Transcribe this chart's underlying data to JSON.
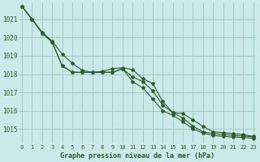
{
  "title": "Graphe pression niveau de la mer (hPa)",
  "background_color": "#cde8e8",
  "grid_color": "#a0ccc0",
  "line_color": "#2d5a2d",
  "x_ticks": [
    0,
    1,
    2,
    3,
    4,
    5,
    6,
    7,
    8,
    9,
    10,
    11,
    12,
    13,
    14,
    15,
    16,
    17,
    18,
    19,
    20,
    21,
    22,
    23
  ],
  "ylim": [
    1014.2,
    1021.9
  ],
  "yticks": [
    1015,
    1016,
    1017,
    1018,
    1019,
    1020,
    1021
  ],
  "line1": [
    1021.7,
    1021.0,
    1020.3,
    1019.8,
    1019.1,
    1018.6,
    1018.2,
    1018.1,
    1018.15,
    1018.3,
    1018.35,
    1018.25,
    1017.75,
    1017.5,
    1016.5,
    1015.9,
    1015.85,
    1015.5,
    1015.15,
    1014.85,
    1014.8,
    1014.75,
    1014.7,
    1014.6
  ],
  "line2": [
    1021.7,
    1021.0,
    1020.25,
    1019.75,
    1018.45,
    1018.1,
    1018.1,
    1018.1,
    1018.1,
    1018.1,
    1018.3,
    1017.85,
    1017.6,
    1017.1,
    1016.3,
    1015.9,
    1015.6,
    1015.15,
    1014.85,
    1014.75,
    1014.7,
    1014.65,
    1014.62,
    1014.58
  ],
  "line3": [
    1021.7,
    1021.0,
    1020.25,
    1019.75,
    1018.45,
    1018.1,
    1018.1,
    1018.1,
    1018.1,
    1018.1,
    1018.3,
    1017.6,
    1017.25,
    1016.65,
    1016.0,
    1015.75,
    1015.4,
    1015.0,
    1014.78,
    1014.65,
    1014.6,
    1014.56,
    1014.54,
    1014.5
  ]
}
